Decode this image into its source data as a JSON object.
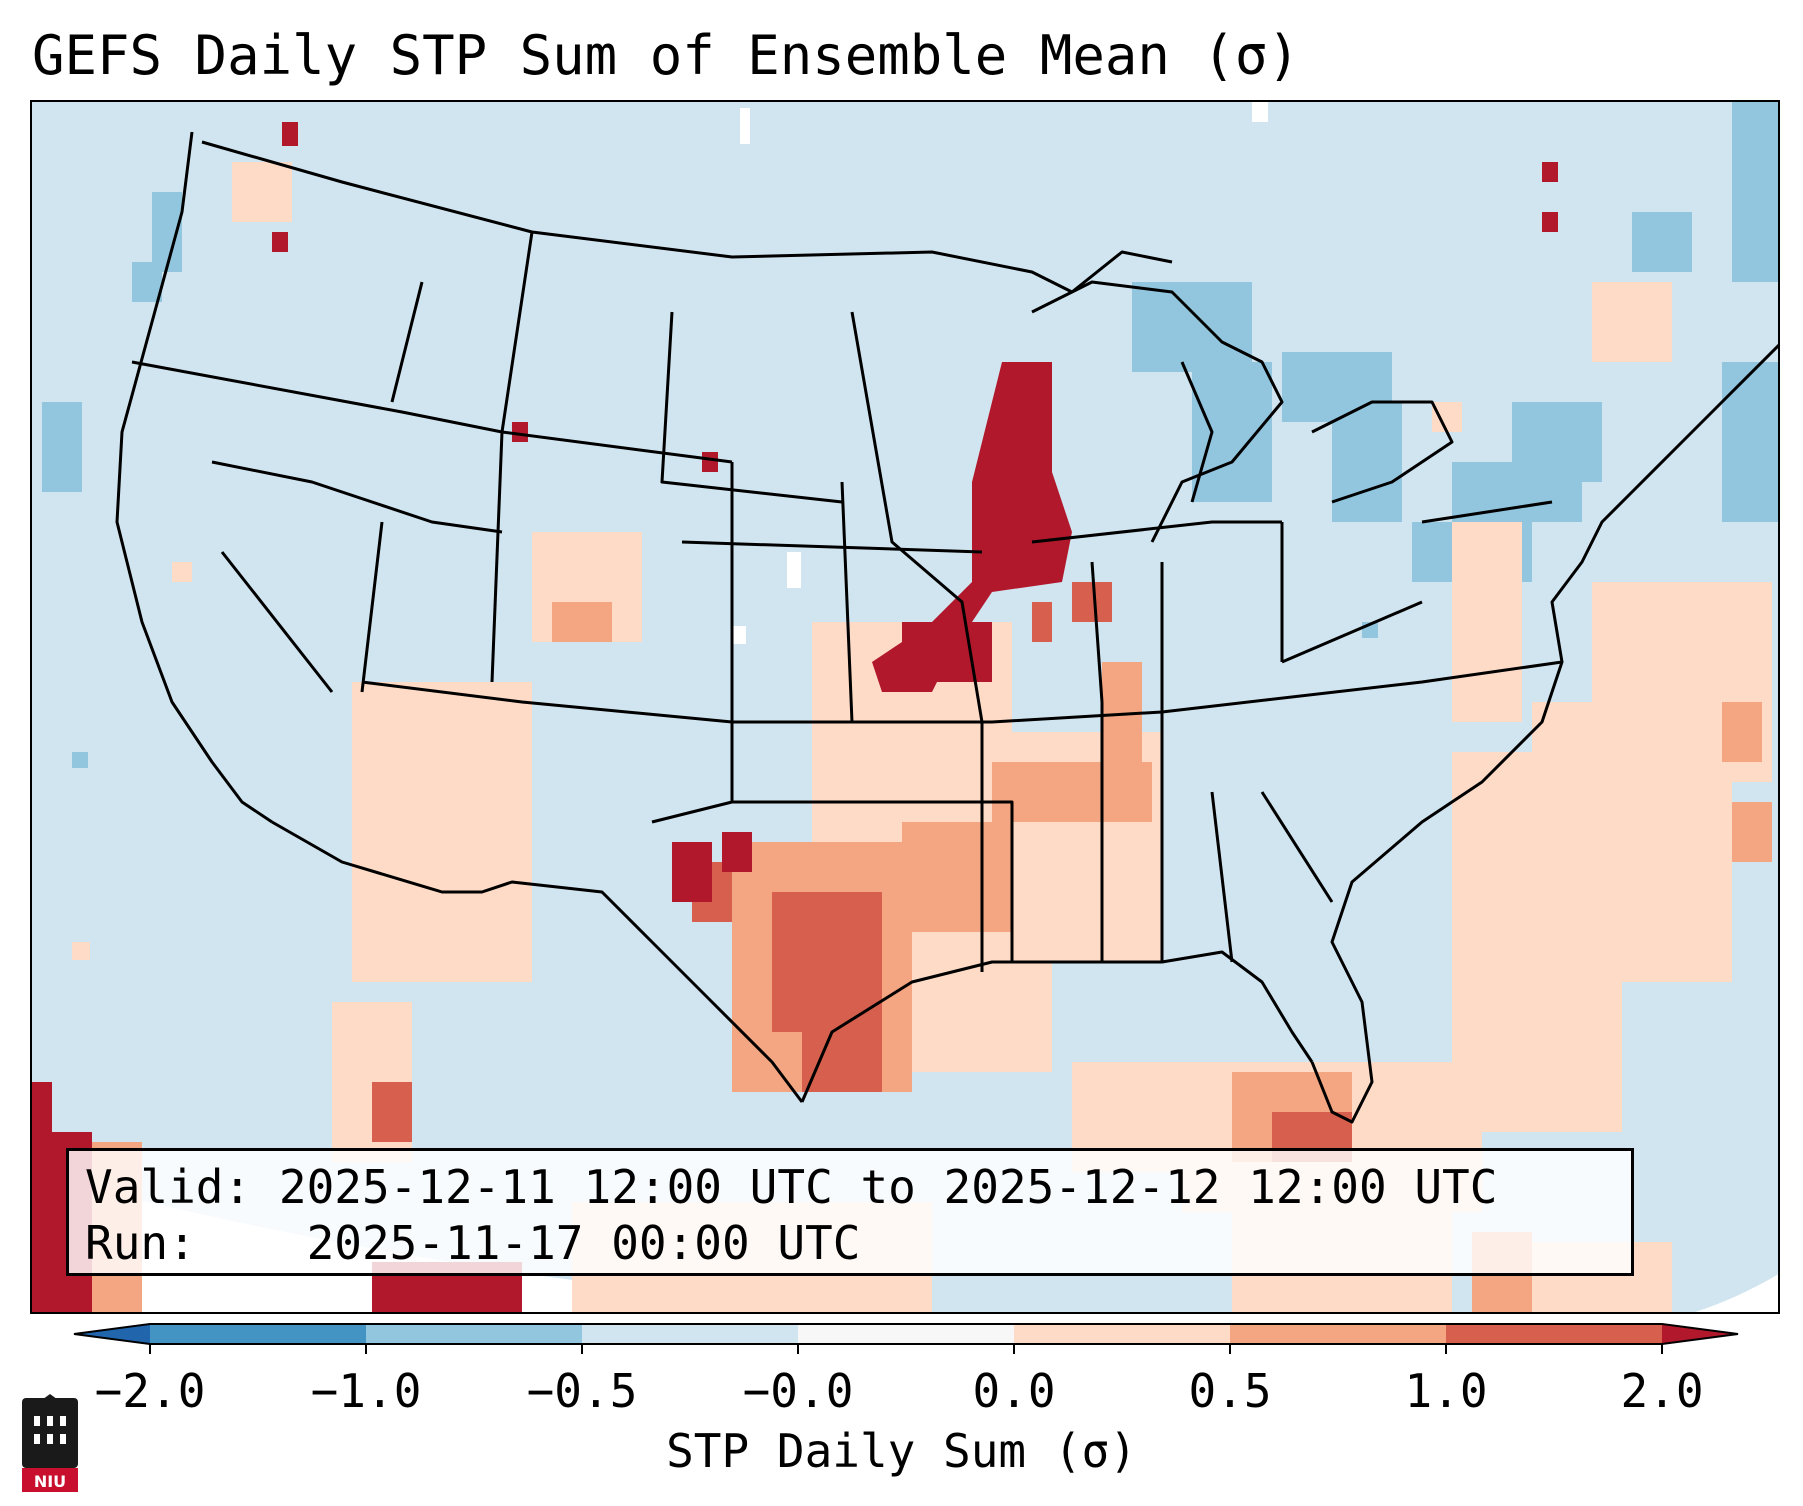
{
  "title": "GEFS Daily STP Sum of Ensemble Mean (σ)",
  "info": {
    "valid_label": "Valid:",
    "valid_value": "2025-12-11 12:00 UTC to 2025-12-12 12:00 UTC",
    "run_label": "Run:",
    "run_value": "2025-11-17 00:00 UTC"
  },
  "colorbar": {
    "label": "STP Daily Sum (σ)",
    "ticks": [
      "−2.0",
      "−1.0",
      "−0.5",
      "−0.0",
      "0.0",
      "0.5",
      "1.0",
      "2.0"
    ],
    "bin_colors": [
      "#4393c3",
      "#92c5de",
      "#d1e5f0",
      "#f7f7f7",
      "#fddbc7",
      "#f4a582",
      "#d6604d"
    ],
    "extend_low_color": "#2166ac",
    "extend_high_color": "#b2182b"
  },
  "map_colors": {
    "neutral_land": "#d1e5f0",
    "low_negative": "#92c5de",
    "low_positive": "#fddbc7",
    "mid_positive": "#f4a582",
    "high_positive": "#d6604d",
    "extreme_positive": "#b2182b"
  },
  "logo": {
    "text": "NIU",
    "color": "#c8102e"
  }
}
